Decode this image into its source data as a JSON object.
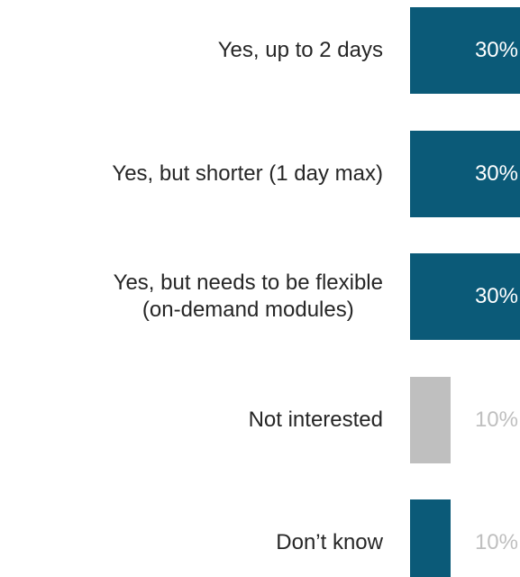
{
  "chart_data": {
    "type": "bar",
    "orientation": "horizontal",
    "categories": [
      "Yes, up to 2 days",
      "Yes, but shorter (1 day max)",
      "Yes, but needs to be flexible\n(on-demand modules)",
      "Not interested",
      "Don’t know"
    ],
    "values": [
      30,
      30,
      30,
      10,
      10
    ],
    "value_labels": [
      "30%",
      "30%",
      "30%",
      "10%",
      "10%"
    ],
    "colors": [
      "#0b5a78",
      "#0b5a78",
      "#0b5a78",
      "#bfbfbf",
      "#0b5a78"
    ]
  }
}
